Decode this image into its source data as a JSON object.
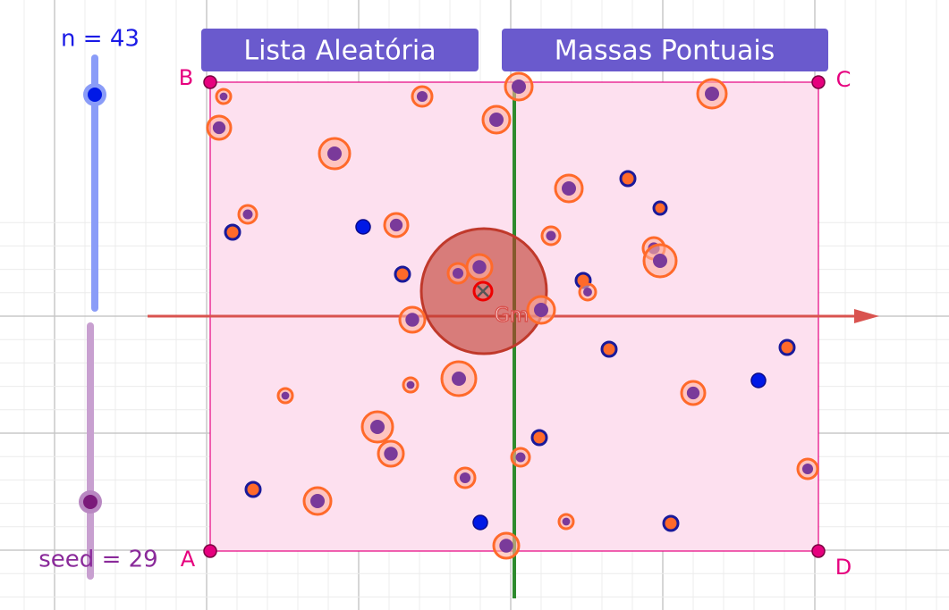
{
  "sliders": {
    "n": "n = 43",
    "seed": "seed = 29"
  },
  "buttons": [
    "Lista Aleatória",
    "Massas Pontuais"
  ],
  "points": {
    "B": "B",
    "C": "C",
    "A": "A",
    "D": "D"
  },
  "center_label": "Gm"
}
